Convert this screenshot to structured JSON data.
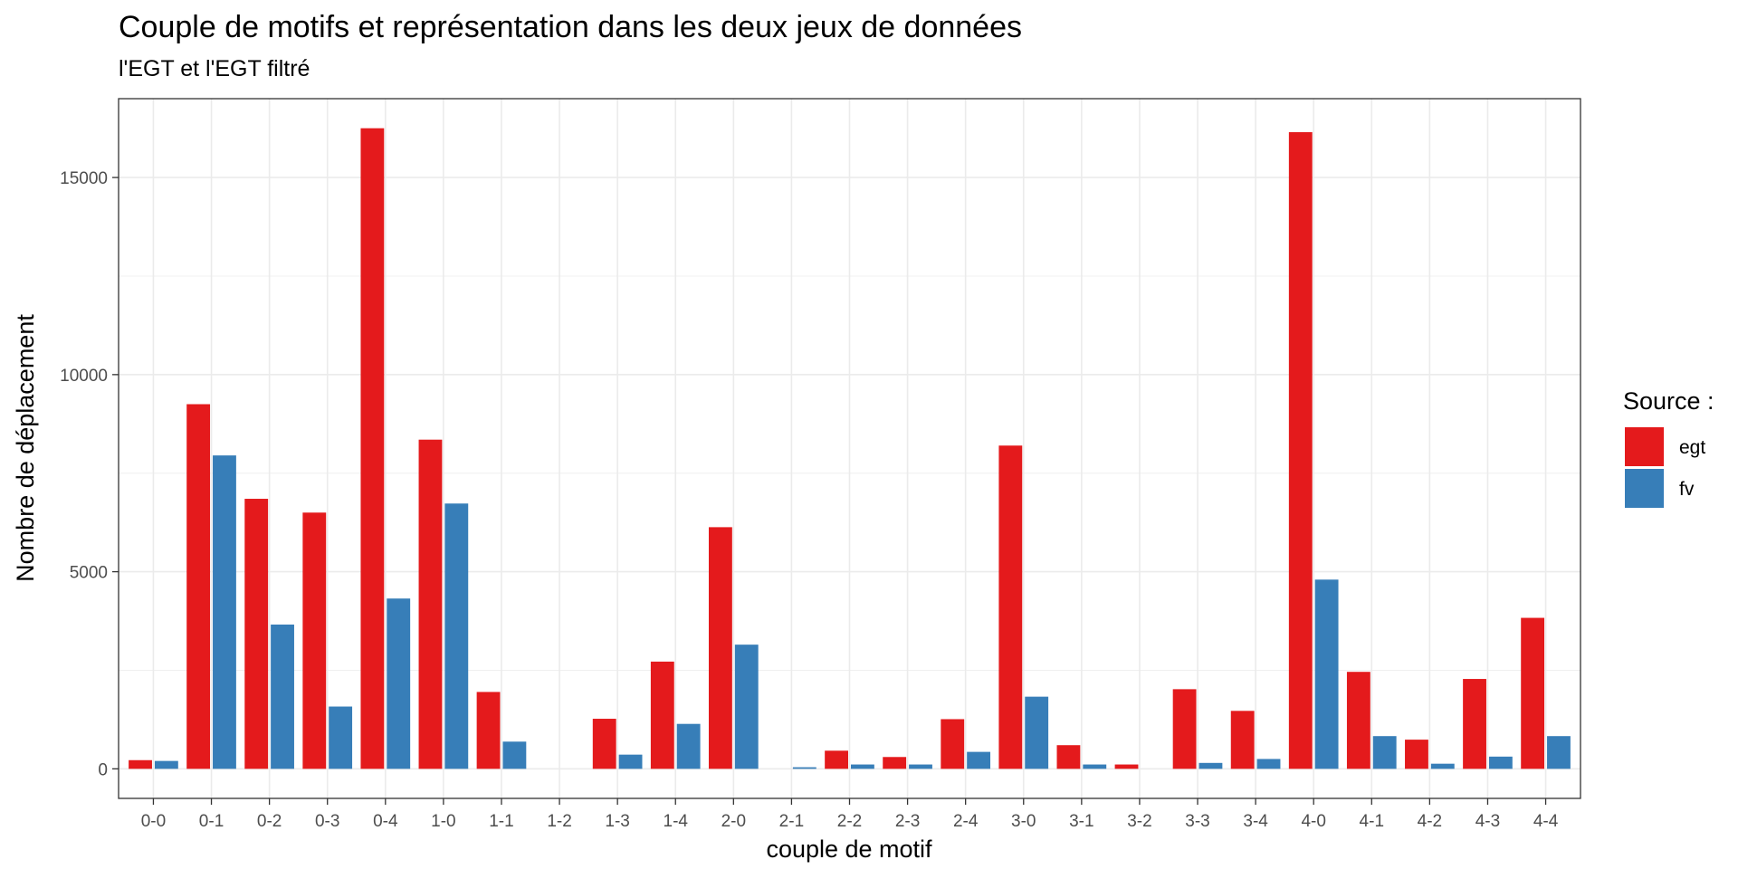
{
  "chart_data": {
    "type": "bar",
    "title": "Couple de motifs et représentation dans les deux jeux de données",
    "subtitle": "l'EGT et l'EGT filtré",
    "xlabel": "couple de motif",
    "ylabel": "Nombre de déplacement",
    "ylim": [
      -750,
      17000
    ],
    "yticks": [
      0,
      5000,
      10000,
      15000
    ],
    "ytick_labels": [
      "0",
      "5000",
      "10000",
      "15000"
    ],
    "grid": true,
    "legend": {
      "title": "Source :",
      "position": "right"
    },
    "categories": [
      "0-0",
      "0-1",
      "0-2",
      "0-3",
      "0-4",
      "1-0",
      "1-1",
      "1-2",
      "1-3",
      "1-4",
      "2-0",
      "2-1",
      "2-2",
      "2-3",
      "2-4",
      "3-0",
      "3-1",
      "3-2",
      "3-3",
      "3-4",
      "4-0",
      "4-1",
      "4-2",
      "4-3",
      "4-4"
    ],
    "series": [
      {
        "name": "egt",
        "color": "#e41a1c",
        "values": [
          220,
          9250,
          6850,
          6500,
          16250,
          8350,
          1950,
          0,
          1270,
          2720,
          6130,
          0,
          460,
          300,
          1260,
          8200,
          600,
          110,
          2020,
          1470,
          16150,
          2460,
          740,
          2280,
          3830
        ]
      },
      {
        "name": "fv",
        "color": "#377eb8",
        "values": [
          200,
          7950,
          3660,
          1580,
          4320,
          6730,
          690,
          0,
          360,
          1140,
          3150,
          40,
          110,
          110,
          430,
          1830,
          110,
          0,
          150,
          250,
          4800,
          830,
          130,
          310,
          830
        ]
      }
    ]
  }
}
